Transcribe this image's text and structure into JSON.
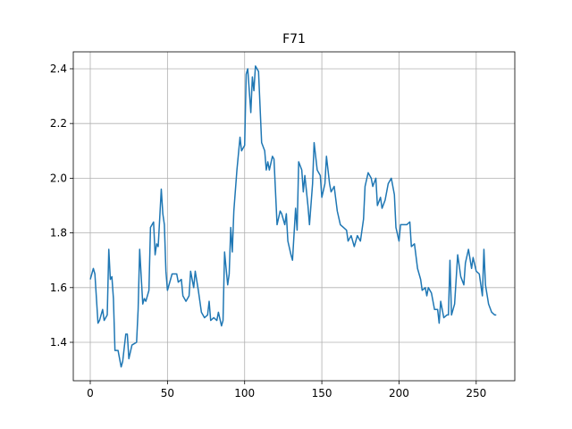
{
  "chart_data": {
    "type": "line",
    "title": "F71",
    "color": "#1f77b4",
    "grid": true,
    "xlim": [
      -11,
      275
    ],
    "ylim": [
      1.2595,
      2.462
    ],
    "xticks": [
      0,
      50,
      100,
      150,
      200,
      250
    ],
    "yticks": [
      1.4,
      1.6,
      1.8,
      {
        "value": 2,
        "label": "2.0"
      },
      2.2,
      2.4
    ],
    "x": [
      0,
      2,
      3,
      5,
      6,
      8,
      9,
      11,
      12,
      13,
      14,
      15,
      16,
      18,
      20,
      21,
      23,
      24,
      25,
      27,
      30,
      31,
      32,
      34,
      35,
      36,
      38,
      39,
      41,
      42,
      43,
      44,
      46,
      47,
      48,
      49,
      50,
      52,
      53,
      56,
      57,
      59,
      60,
      62,
      64,
      65,
      67,
      68,
      70,
      72,
      74,
      76,
      77,
      78,
      80,
      82,
      83,
      85,
      86,
      87,
      89,
      90,
      91,
      92,
      93,
      95,
      97,
      98,
      100,
      101,
      102,
      104,
      105,
      106,
      107,
      109,
      110,
      111,
      113,
      114,
      115,
      116,
      118,
      119,
      121,
      123,
      124,
      126,
      127,
      128,
      130,
      131,
      133,
      134,
      135,
      137,
      138,
      139,
      141,
      142,
      144,
      145,
      147,
      149,
      150,
      152,
      153,
      155,
      156,
      158,
      160,
      162,
      164,
      166,
      167,
      169,
      171,
      173,
      175,
      177,
      178,
      180,
      182,
      183,
      185,
      186,
      188,
      189,
      191,
      193,
      195,
      197,
      198,
      200,
      201,
      203,
      205,
      207,
      208,
      210,
      212,
      214,
      215,
      217,
      218,
      219,
      221,
      223,
      225,
      226,
      227,
      229,
      231,
      232,
      233,
      234,
      236,
      238,
      240,
      242,
      243,
      245,
      247,
      248,
      250,
      252,
      254,
      255,
      256,
      258,
      260,
      262,
      263
    ],
    "values": [
      1.63,
      1.67,
      1.65,
      1.47,
      1.48,
      1.52,
      1.48,
      1.5,
      1.74,
      1.63,
      1.64,
      1.56,
      1.37,
      1.37,
      1.31,
      1.33,
      1.43,
      1.43,
      1.34,
      1.39,
      1.4,
      1.52,
      1.74,
      1.54,
      1.56,
      1.55,
      1.59,
      1.82,
      1.84,
      1.72,
      1.76,
      1.75,
      1.96,
      1.87,
      1.83,
      1.66,
      1.59,
      1.63,
      1.65,
      1.65,
      1.62,
      1.63,
      1.57,
      1.55,
      1.57,
      1.66,
      1.6,
      1.66,
      1.59,
      1.51,
      1.49,
      1.5,
      1.55,
      1.48,
      1.49,
      1.48,
      1.51,
      1.46,
      1.48,
      1.73,
      1.61,
      1.65,
      1.82,
      1.73,
      1.88,
      2.03,
      2.15,
      2.1,
      2.12,
      2.38,
      2.4,
      2.24,
      2.37,
      2.32,
      2.41,
      2.39,
      2.26,
      2.13,
      2.1,
      2.03,
      2.06,
      2.03,
      2.08,
      2.07,
      1.83,
      1.88,
      1.87,
      1.83,
      1.87,
      1.77,
      1.72,
      1.7,
      1.89,
      1.81,
      2.06,
      2.03,
      1.95,
      2.01,
      1.9,
      1.83,
      1.98,
      2.13,
      2.03,
      2.01,
      1.93,
      1.98,
      2.08,
      1.98,
      1.95,
      1.97,
      1.88,
      1.83,
      1.82,
      1.81,
      1.77,
      1.79,
      1.75,
      1.79,
      1.77,
      1.85,
      1.97,
      2.02,
      2.0,
      1.97,
      2.0,
      1.9,
      1.93,
      1.89,
      1.92,
      1.98,
      2.0,
      1.94,
      1.82,
      1.77,
      1.83,
      1.83,
      1.83,
      1.84,
      1.75,
      1.76,
      1.67,
      1.63,
      1.59,
      1.6,
      1.57,
      1.6,
      1.58,
      1.52,
      1.52,
      1.47,
      1.55,
      1.49,
      1.5,
      1.5,
      1.7,
      1.5,
      1.54,
      1.72,
      1.64,
      1.61,
      1.69,
      1.74,
      1.67,
      1.71,
      1.66,
      1.65,
      1.57,
      1.74,
      1.61,
      1.54,
      1.51,
      1.5,
      1.5
    ]
  }
}
